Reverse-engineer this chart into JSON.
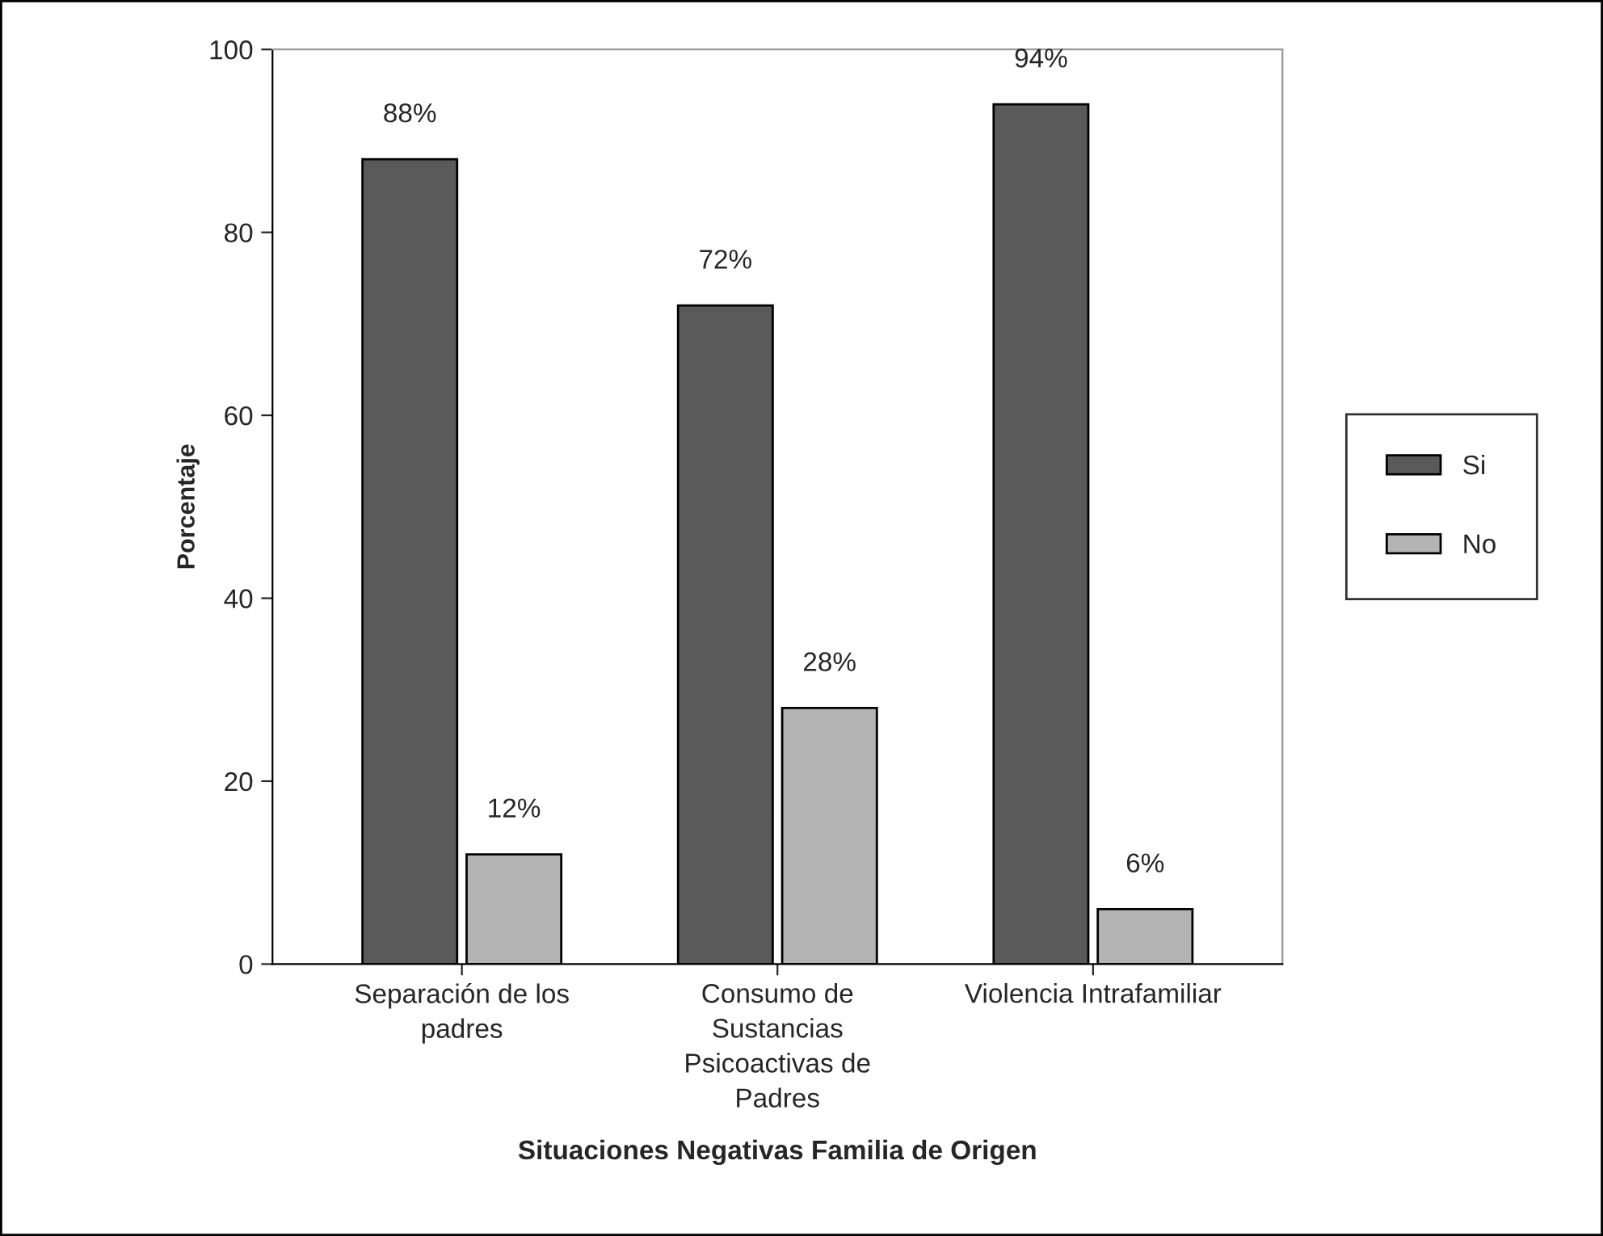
{
  "chart_data": {
    "type": "bar",
    "xlabel": "Situaciones Negativas Familia de Origen",
    "ylabel": "Porcentaje",
    "categories": [
      "Separación de los\npadres",
      "Consumo de\nSustancias\nPsicoactivas de\nPadres",
      "Violencia Intrafamiliar"
    ],
    "series": [
      {
        "name": "Si",
        "color": "#5a5a5a",
        "values": [
          88,
          72,
          94
        ],
        "value_labels": [
          "88%",
          "72%",
          "94%"
        ]
      },
      {
        "name": "No",
        "color": "#b4b4b4",
        "values": [
          12,
          28,
          6
        ],
        "value_labels": [
          "12%",
          "28%",
          "6%"
        ]
      }
    ],
    "ylim": [
      0,
      100
    ],
    "yticks": [
      0,
      20,
      40,
      60,
      80,
      100
    ],
    "grid": false,
    "legend": "right"
  }
}
